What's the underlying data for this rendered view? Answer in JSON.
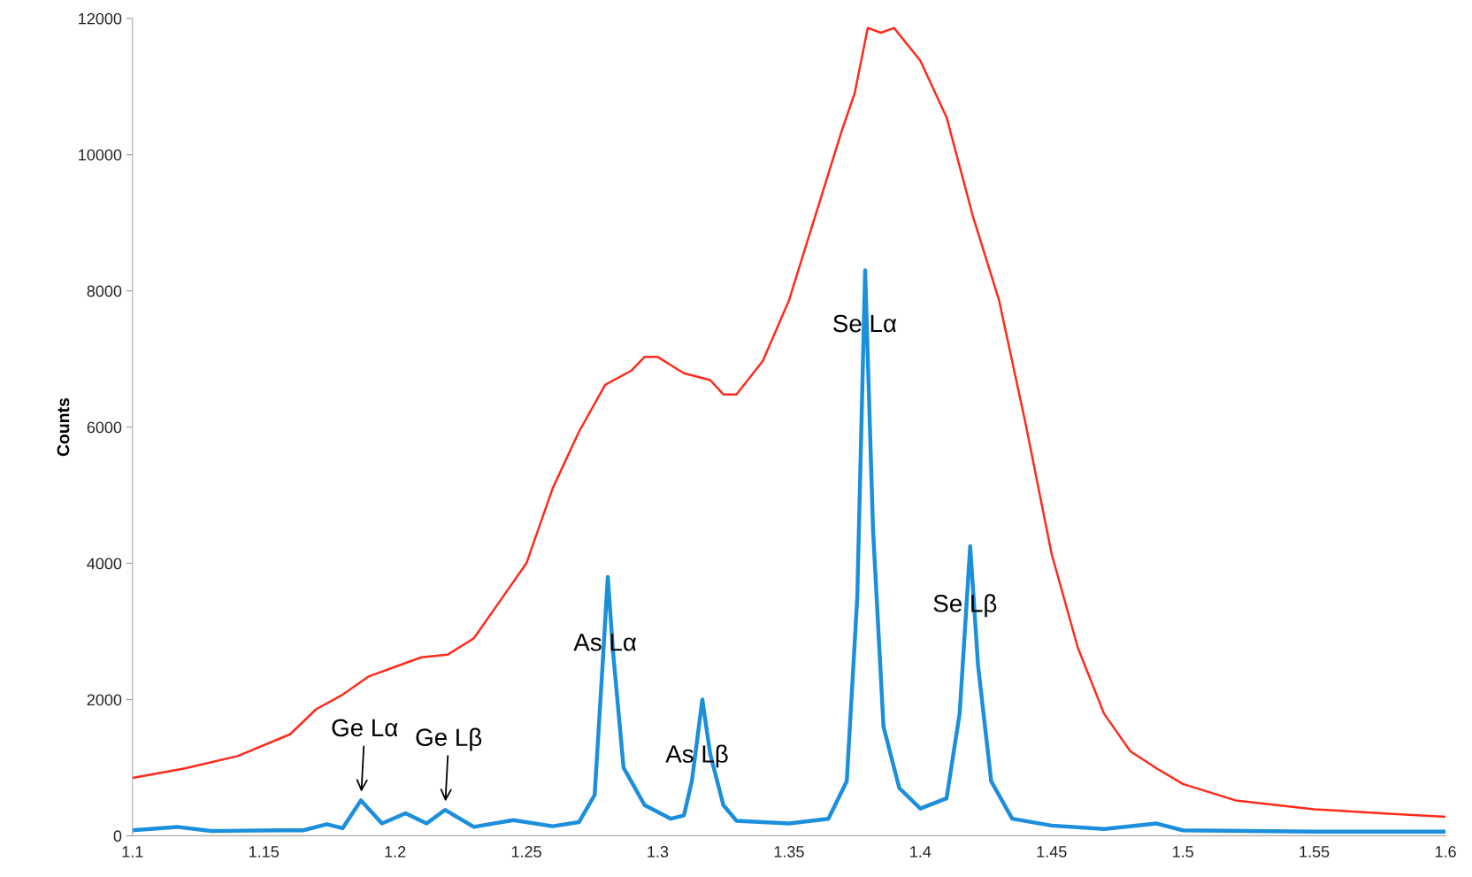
{
  "chart_data": {
    "type": "line",
    "ylabel": "Counts",
    "xlim": [
      1.1,
      1.6
    ],
    "ylim": [
      0,
      12000
    ],
    "xticks": [
      1.1,
      1.15,
      1.2,
      1.25,
      1.3,
      1.35,
      1.4,
      1.45,
      1.5,
      1.55,
      1.6
    ],
    "yticks": [
      0,
      2000,
      4000,
      6000,
      8000,
      10000,
      12000
    ],
    "grid": false,
    "legend": false,
    "marker": "none",
    "line_style": "solid",
    "series": [
      {
        "color": "#ff2a1a",
        "x": [
          1.1,
          1.12,
          1.14,
          1.16,
          1.17,
          1.18,
          1.19,
          1.2,
          1.21,
          1.22,
          1.23,
          1.24,
          1.25,
          1.26,
          1.27,
          1.28,
          1.29,
          1.295,
          1.3,
          1.31,
          1.32,
          1.325,
          1.33,
          1.34,
          1.35,
          1.36,
          1.37,
          1.375,
          1.38,
          1.385,
          1.39,
          1.4,
          1.41,
          1.42,
          1.43,
          1.44,
          1.45,
          1.46,
          1.47,
          1.48,
          1.49,
          1.5,
          1.52,
          1.55,
          1.58,
          1.6
        ],
        "values": [
          850,
          990,
          1170,
          1490,
          1860,
          2070,
          2340,
          2480,
          2620,
          2660,
          2900,
          3450,
          4000,
          5100,
          5930,
          6620,
          6830,
          7030,
          7030,
          6790,
          6690,
          6480,
          6480,
          6970,
          7860,
          9100,
          10340,
          10900,
          11860,
          11790,
          11860,
          11380,
          10550,
          9100,
          7860,
          6070,
          4140,
          2760,
          1790,
          1240,
          990,
          760,
          520,
          390,
          320,
          280
        ]
      },
      {
        "color": "#1b8fdc",
        "x": [
          1.1,
          1.117,
          1.13,
          1.155,
          1.165,
          1.174,
          1.18,
          1.187,
          1.195,
          1.204,
          1.212,
          1.219,
          1.23,
          1.245,
          1.26,
          1.27,
          1.276,
          1.279,
          1.281,
          1.283,
          1.287,
          1.295,
          1.305,
          1.31,
          1.313,
          1.317,
          1.32,
          1.325,
          1.33,
          1.35,
          1.365,
          1.372,
          1.376,
          1.379,
          1.382,
          1.386,
          1.392,
          1.4,
          1.41,
          1.415,
          1.419,
          1.422,
          1.427,
          1.435,
          1.45,
          1.47,
          1.49,
          1.5,
          1.55,
          1.6
        ],
        "values": [
          80,
          130,
          70,
          80,
          80,
          170,
          110,
          520,
          180,
          330,
          180,
          380,
          130,
          230,
          140,
          200,
          600,
          2500,
          3800,
          2700,
          1000,
          450,
          250,
          300,
          800,
          2000,
          1200,
          450,
          220,
          180,
          250,
          800,
          3500,
          8300,
          4500,
          1600,
          700,
          400,
          550,
          1800,
          4250,
          2500,
          800,
          250,
          150,
          100,
          180,
          80,
          60,
          60
        ]
      }
    ],
    "annotations": [
      {
        "text": "Ge Lα",
        "x": 1.187,
        "y": 520
      },
      {
        "text": "Ge Lβ",
        "x": 1.219,
        "y": 380
      },
      {
        "text": "As Lα",
        "x": 1.28,
        "y": 2810
      },
      {
        "text": "As Lβ",
        "x": 1.315,
        "y": 1170
      },
      {
        "text": "Se Lα",
        "x": 1.3788,
        "y": 7490
      },
      {
        "text": "Se Lβ",
        "x": 1.417,
        "y": 3380
      }
    ]
  }
}
